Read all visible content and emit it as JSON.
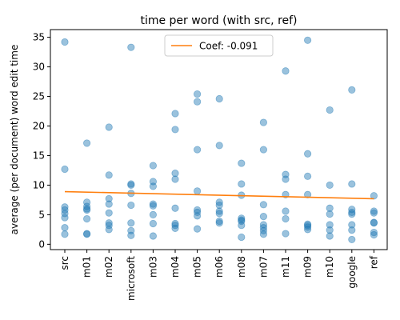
{
  "chart_data": {
    "type": "scatter",
    "title": "time per word (with src, ref)",
    "xlabel": "",
    "ylabel": "average (per document) word edit time",
    "categories": [
      "src",
      "m01",
      "m02",
      "microsoft",
      "m03",
      "m04",
      "m05",
      "m06",
      "m08",
      "m07",
      "m11",
      "m09",
      "m10",
      "google",
      "ref"
    ],
    "ylim": [
      -0.9,
      36.3
    ],
    "yticks": [
      0,
      5,
      10,
      15,
      20,
      25,
      30,
      35
    ],
    "grid": false,
    "legend_position": "top-center",
    "colors": {
      "points": "#1f77b4",
      "trend": "#ff7f0e"
    },
    "series": [
      {
        "kind": "points",
        "points": [
          {
            "x": "src",
            "y": 34.2
          },
          {
            "x": "src",
            "y": 12.7
          },
          {
            "x": "src",
            "y": 6.3
          },
          {
            "x": "src",
            "y": 5.8
          },
          {
            "x": "src",
            "y": 5.2
          },
          {
            "x": "src",
            "y": 4.5
          },
          {
            "x": "src",
            "y": 2.8
          },
          {
            "x": "src",
            "y": 1.7
          },
          {
            "x": "m01",
            "y": 17.1
          },
          {
            "x": "m01",
            "y": 7.1
          },
          {
            "x": "m01",
            "y": 6.4
          },
          {
            "x": "m01",
            "y": 6.0
          },
          {
            "x": "m01",
            "y": 5.8
          },
          {
            "x": "m01",
            "y": 4.3
          },
          {
            "x": "m01",
            "y": 1.8
          },
          {
            "x": "m01",
            "y": 1.7
          },
          {
            "x": "m02",
            "y": 19.8
          },
          {
            "x": "m02",
            "y": 11.7
          },
          {
            "x": "m02",
            "y": 7.7
          },
          {
            "x": "m02",
            "y": 6.8
          },
          {
            "x": "m02",
            "y": 5.3
          },
          {
            "x": "m02",
            "y": 3.6
          },
          {
            "x": "m02",
            "y": 3.2
          },
          {
            "x": "m02",
            "y": 2.5
          },
          {
            "x": "microsoft",
            "y": 33.3
          },
          {
            "x": "microsoft",
            "y": 10.2
          },
          {
            "x": "microsoft",
            "y": 10.0
          },
          {
            "x": "microsoft",
            "y": 8.6
          },
          {
            "x": "microsoft",
            "y": 6.6
          },
          {
            "x": "microsoft",
            "y": 3.6
          },
          {
            "x": "microsoft",
            "y": 2.3
          },
          {
            "x": "microsoft",
            "y": 1.5
          },
          {
            "x": "m03",
            "y": 13.3
          },
          {
            "x": "m03",
            "y": 10.6
          },
          {
            "x": "m03",
            "y": 9.8
          },
          {
            "x": "m03",
            "y": 6.8
          },
          {
            "x": "m03",
            "y": 6.5
          },
          {
            "x": "m03",
            "y": 5.0
          },
          {
            "x": "m03",
            "y": 3.5
          },
          {
            "x": "m03",
            "y": 1.4
          },
          {
            "x": "m04",
            "y": 22.1
          },
          {
            "x": "m04",
            "y": 19.4
          },
          {
            "x": "m04",
            "y": 12.0
          },
          {
            "x": "m04",
            "y": 11.0
          },
          {
            "x": "m04",
            "y": 6.1
          },
          {
            "x": "m04",
            "y": 3.5
          },
          {
            "x": "m04",
            "y": 3.2
          },
          {
            "x": "m04",
            "y": 2.7
          },
          {
            "x": "m05",
            "y": 25.4
          },
          {
            "x": "m05",
            "y": 24.1
          },
          {
            "x": "m05",
            "y": 16.0
          },
          {
            "x": "m05",
            "y": 9.0
          },
          {
            "x": "m05",
            "y": 5.8
          },
          {
            "x": "m05",
            "y": 5.4
          },
          {
            "x": "m05",
            "y": 4.8
          },
          {
            "x": "m05",
            "y": 2.6
          },
          {
            "x": "m06",
            "y": 24.6
          },
          {
            "x": "m06",
            "y": 16.7
          },
          {
            "x": "m06",
            "y": 7.1
          },
          {
            "x": "m06",
            "y": 6.6
          },
          {
            "x": "m06",
            "y": 5.6
          },
          {
            "x": "m06",
            "y": 5.2
          },
          {
            "x": "m06",
            "y": 3.9
          },
          {
            "x": "m06",
            "y": 3.6
          },
          {
            "x": "m08",
            "y": 13.7
          },
          {
            "x": "m08",
            "y": 10.2
          },
          {
            "x": "m08",
            "y": 8.3
          },
          {
            "x": "m08",
            "y": 4.4
          },
          {
            "x": "m08",
            "y": 4.1
          },
          {
            "x": "m08",
            "y": 3.9
          },
          {
            "x": "m08",
            "y": 3.2
          },
          {
            "x": "m08",
            "y": 1.2
          },
          {
            "x": "m07",
            "y": 20.6
          },
          {
            "x": "m07",
            "y": 16.0
          },
          {
            "x": "m07",
            "y": 6.7
          },
          {
            "x": "m07",
            "y": 4.7
          },
          {
            "x": "m07",
            "y": 3.3
          },
          {
            "x": "m07",
            "y": 2.8
          },
          {
            "x": "m07",
            "y": 2.3
          },
          {
            "x": "m07",
            "y": 1.7
          },
          {
            "x": "m11",
            "y": 29.3
          },
          {
            "x": "m11",
            "y": 11.8
          },
          {
            "x": "m11",
            "y": 11.0
          },
          {
            "x": "m11",
            "y": 8.4
          },
          {
            "x": "m11",
            "y": 5.6
          },
          {
            "x": "m11",
            "y": 4.3
          },
          {
            "x": "m11",
            "y": 1.8
          },
          {
            "x": "m09",
            "y": 34.5
          },
          {
            "x": "m09",
            "y": 15.3
          },
          {
            "x": "m09",
            "y": 11.5
          },
          {
            "x": "m09",
            "y": 8.4
          },
          {
            "x": "m09",
            "y": 3.4
          },
          {
            "x": "m09",
            "y": 3.2
          },
          {
            "x": "m09",
            "y": 2.9
          },
          {
            "x": "m09",
            "y": 2.5
          },
          {
            "x": "m10",
            "y": 22.7
          },
          {
            "x": "m10",
            "y": 10.0
          },
          {
            "x": "m10",
            "y": 6.1
          },
          {
            "x": "m10",
            "y": 5.1
          },
          {
            "x": "m10",
            "y": 3.3
          },
          {
            "x": "m10",
            "y": 2.4
          },
          {
            "x": "m10",
            "y": 1.4
          },
          {
            "x": "google",
            "y": 26.1
          },
          {
            "x": "google",
            "y": 10.2
          },
          {
            "x": "google",
            "y": 5.9
          },
          {
            "x": "google",
            "y": 5.4
          },
          {
            "x": "google",
            "y": 5.1
          },
          {
            "x": "google",
            "y": 3.3
          },
          {
            "x": "google",
            "y": 2.4
          },
          {
            "x": "google",
            "y": 0.8
          },
          {
            "x": "ref",
            "y": 8.2
          },
          {
            "x": "ref",
            "y": 5.6
          },
          {
            "x": "ref",
            "y": 5.3
          },
          {
            "x": "ref",
            "y": 3.7
          },
          {
            "x": "ref",
            "y": 3.6
          },
          {
            "x": "ref",
            "y": 2.0
          },
          {
            "x": "ref",
            "y": 1.6
          }
        ]
      },
      {
        "kind": "trendline",
        "name": "Coef: -0.091",
        "start": {
          "x": "src",
          "y": 8.9
        },
        "end": {
          "x": "ref",
          "y": 7.7
        }
      }
    ]
  }
}
